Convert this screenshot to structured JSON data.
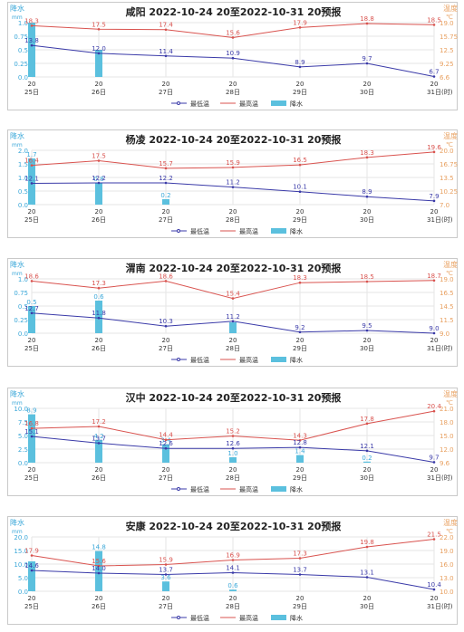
{
  "labels": {
    "left_unit_top": "降水",
    "left_unit_sub": "mm",
    "right_unit_top": "温度",
    "right_unit_sub": "℃",
    "time_unit": "(时)",
    "legend_min": "最低温",
    "legend_max": "最高温",
    "legend_rain": "降水"
  },
  "colors": {
    "max_temp": "#d9534f",
    "min_temp": "#3a3aa8",
    "rain": "#5bc0de",
    "rain_axis": "#3aa7d8",
    "temp_axis": "#e8a060",
    "grid": "#e6e6e6"
  },
  "chart_data": [
    {
      "type": "line",
      "title": "咸阳 2022-10-24 20至2022-10-31 20预报",
      "x_hours": [
        "20",
        "20",
        "20",
        "20",
        "20",
        "20",
        "20"
      ],
      "x_days": [
        "25日",
        "26日",
        "27日",
        "28日",
        "29日",
        "30日",
        "31日"
      ],
      "rain_ticks": [
        "0.0",
        "0.25",
        "0.5",
        "0.75",
        "1.0"
      ],
      "temp_ticks": [
        "6.6",
        "9.25",
        "12.5",
        "15.75",
        "19.0"
      ],
      "rain_range": [
        0,
        1.0
      ],
      "temp_range": [
        6.6,
        19.0
      ],
      "series": [
        {
          "name": "最高温",
          "values": [
            18.3,
            17.5,
            17.4,
            15.6,
            17.9,
            18.8,
            18.5
          ],
          "labels": [
            "18.3",
            "17.5",
            "17.4",
            "15.6",
            "17.9",
            "18.8",
            "18.5"
          ]
        },
        {
          "name": "最低温",
          "values": [
            13.8,
            12.0,
            11.4,
            10.9,
            8.9,
            9.7,
            6.7
          ],
          "labels": [
            "13.8",
            "12.0",
            "11.4",
            "10.9",
            "8.9",
            "9.7",
            "6.7"
          ]
        },
        {
          "name": "降水",
          "values": [
            1.0,
            0.5,
            null,
            null,
            null,
            null,
            null
          ],
          "labels": [
            "",
            "",
            "",
            "",
            "",
            "",
            ""
          ]
        }
      ]
    },
    {
      "type": "line",
      "title": "杨凌 2022-10-24 20至2022-10-31 20预报",
      "x_hours": [
        "20",
        "20",
        "20",
        "20",
        "20",
        "20",
        "20"
      ],
      "x_days": [
        "25日",
        "26日",
        "27日",
        "28日",
        "29日",
        "30日",
        "31日"
      ],
      "rain_ticks": [
        "0.0",
        "0.5",
        "1.0",
        "1.5",
        "2.0"
      ],
      "temp_ticks": [
        "7.0",
        "10.25",
        "13.5",
        "16.75",
        "20.0"
      ],
      "rain_range": [
        0,
        2.0
      ],
      "temp_range": [
        7.0,
        20.0
      ],
      "series": [
        {
          "name": "最高温",
          "values": [
            16.4,
            17.5,
            15.7,
            15.9,
            16.5,
            18.3,
            19.6
          ],
          "labels": [
            "16.4",
            "17.5",
            "15.7",
            "15.9",
            "16.5",
            "18.3",
            "19.6"
          ]
        },
        {
          "name": "最低温",
          "values": [
            12.1,
            12.2,
            12.2,
            11.2,
            10.1,
            8.9,
            7.9
          ],
          "labels": [
            "12.1",
            "12.2",
            "12.2",
            "11.2",
            "10.1",
            "8.9",
            "7.9"
          ]
        },
        {
          "name": "降水",
          "values": [
            1.7,
            0.8,
            0.2,
            null,
            null,
            null,
            null
          ],
          "labels": [
            "1.7",
            "0.8",
            "0.2",
            "",
            "",
            "",
            ""
          ]
        }
      ]
    },
    {
      "type": "line",
      "title": "渭南 2022-10-24 20至2022-10-31 20预报",
      "x_hours": [
        "20",
        "20",
        "20",
        "20",
        "20",
        "20",
        "20"
      ],
      "x_days": [
        "25日",
        "26日",
        "27日",
        "28日",
        "29日",
        "30日",
        "31日"
      ],
      "rain_ticks": [
        "0.0",
        "0.25",
        "0.5",
        "0.75",
        "1.0"
      ],
      "temp_ticks": [
        "9.0",
        "11.5",
        "14.5",
        "16.5",
        "19.0"
      ],
      "rain_range": [
        0,
        1.0
      ],
      "temp_range": [
        9.0,
        19.0
      ],
      "series": [
        {
          "name": "最高温",
          "values": [
            18.6,
            17.3,
            18.6,
            15.4,
            18.3,
            18.5,
            18.7
          ],
          "labels": [
            "18.6",
            "17.3",
            "18.6",
            "15.4",
            "18.3",
            "18.5",
            "18.7"
          ]
        },
        {
          "name": "最低温",
          "values": [
            12.7,
            11.8,
            10.3,
            11.2,
            9.2,
            9.5,
            9.0
          ],
          "labels": [
            "12.7",
            "11.8",
            "10.3",
            "11.2",
            "9.2",
            "9.5",
            "9.0"
          ]
        },
        {
          "name": "降水",
          "values": [
            0.5,
            0.6,
            null,
            0.2,
            null,
            null,
            null
          ],
          "labels": [
            "0.5",
            "0.6",
            "",
            "",
            "",
            "",
            ""
          ]
        }
      ]
    },
    {
      "type": "line",
      "title": "汉中 2022-10-24 20至2022-10-31 20预报",
      "x_hours": [
        "20",
        "20",
        "20",
        "20",
        "20",
        "20",
        "20"
      ],
      "x_days": [
        "25日",
        "26日",
        "27日",
        "28日",
        "29日",
        "30日",
        "31日"
      ],
      "rain_ticks": [
        "0.0",
        "2.5",
        "5.0",
        "7.5",
        "10.0"
      ],
      "temp_ticks": [
        "9.6",
        "12.0",
        "15.0",
        "18.0",
        "21.0"
      ],
      "rain_range": [
        0,
        10.0
      ],
      "temp_range": [
        9.6,
        21.0
      ],
      "series": [
        {
          "name": "最高温",
          "values": [
            16.8,
            17.2,
            14.4,
            15.2,
            14.3,
            17.8,
            20.4
          ],
          "labels": [
            "16.8",
            "17.2",
            "14.4",
            "15.2",
            "14.3",
            "17.8",
            "20.4"
          ]
        },
        {
          "name": "最低温",
          "values": [
            15.1,
            13.7,
            12.6,
            12.6,
            12.8,
            12.1,
            9.7
          ],
          "labels": [
            "15.1",
            "13.7",
            "12.6",
            "12.6",
            "12.8",
            "12.1",
            "9.7"
          ]
        },
        {
          "name": "降水",
          "values": [
            8.9,
            4.2,
            3.4,
            1.0,
            1.4,
            0.2,
            null
          ],
          "labels": [
            "8.9",
            "4.2",
            "3.4",
            "1.0",
            "1.4",
            "0.2",
            ""
          ]
        }
      ]
    },
    {
      "type": "line",
      "title": "安康 2022-10-24 20至2022-10-31 20预报",
      "x_hours": [
        "20",
        "20",
        "20",
        "20",
        "20",
        "20",
        "20"
      ],
      "x_days": [
        "25日",
        "26日",
        "27日",
        "28日",
        "29日",
        "30日",
        "31日"
      ],
      "rain_ticks": [
        "0.0",
        "5.0",
        "10.0",
        "15.0",
        "20.0"
      ],
      "temp_ticks": [
        "10.0",
        "13.0",
        "16.0",
        "19.0",
        "22.0"
      ],
      "rain_range": [
        0,
        20.0
      ],
      "temp_range": [
        10.0,
        22.0
      ],
      "series": [
        {
          "name": "最高温",
          "values": [
            17.9,
            15.6,
            15.9,
            16.9,
            17.3,
            19.8,
            21.5
          ],
          "labels": [
            "17.9",
            "15.6",
            "15.9",
            "16.9",
            "17.3",
            "19.8",
            "21.5"
          ]
        },
        {
          "name": "最低温",
          "values": [
            14.6,
            14.0,
            13.7,
            14.1,
            13.7,
            13.1,
            10.4
          ],
          "labels": [
            "14.6",
            "14.0",
            "13.7",
            "14.1",
            "13.7",
            "13.1",
            "10.4"
          ]
        },
        {
          "name": "降水",
          "values": [
            11.0,
            14.8,
            3.6,
            0.6,
            null,
            null,
            null
          ],
          "labels": [
            "",
            "14.8",
            "3.6",
            "0.6",
            "",
            "",
            ""
          ]
        }
      ]
    }
  ]
}
